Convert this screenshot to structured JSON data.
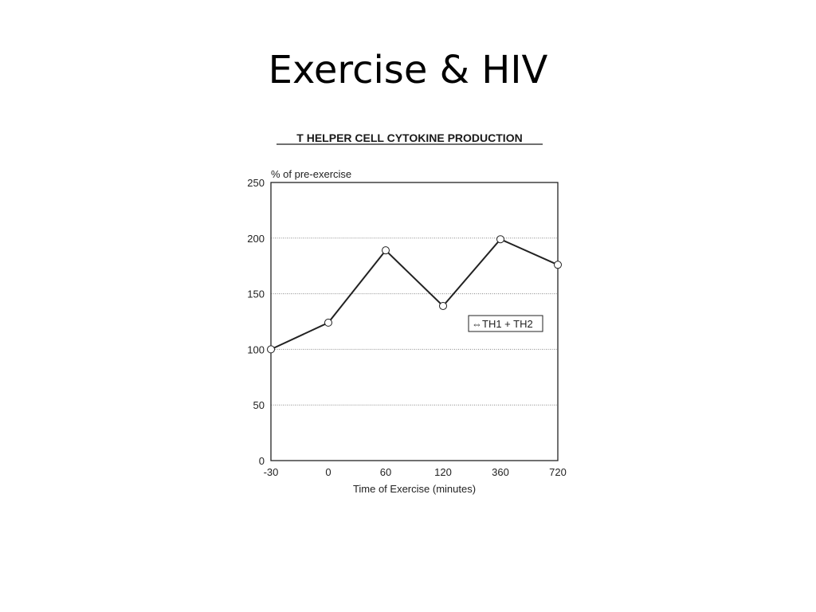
{
  "slide": {
    "title": "Exercise & HIV"
  },
  "chart_data": {
    "type": "line",
    "title": "T HELPER CELL CYTOKINE PRODUCTION",
    "ylabel": "% of pre-exercise",
    "xlabel": "Time of Exercise (minutes)",
    "categories": [
      "-30",
      "0",
      "60",
      "120",
      "360",
      "720"
    ],
    "series": [
      {
        "name": "TH1 + TH2",
        "legend_symbol": "⇔",
        "values": [
          100,
          124,
          189,
          139,
          199,
          176
        ]
      }
    ],
    "ylim": [
      0,
      250
    ],
    "yticks": [
      0,
      50,
      100,
      150,
      200,
      250
    ],
    "grid": true,
    "legend_position": "right",
    "colors": {
      "line": "#222222",
      "grid": "#888888",
      "frame": "#222222"
    }
  }
}
